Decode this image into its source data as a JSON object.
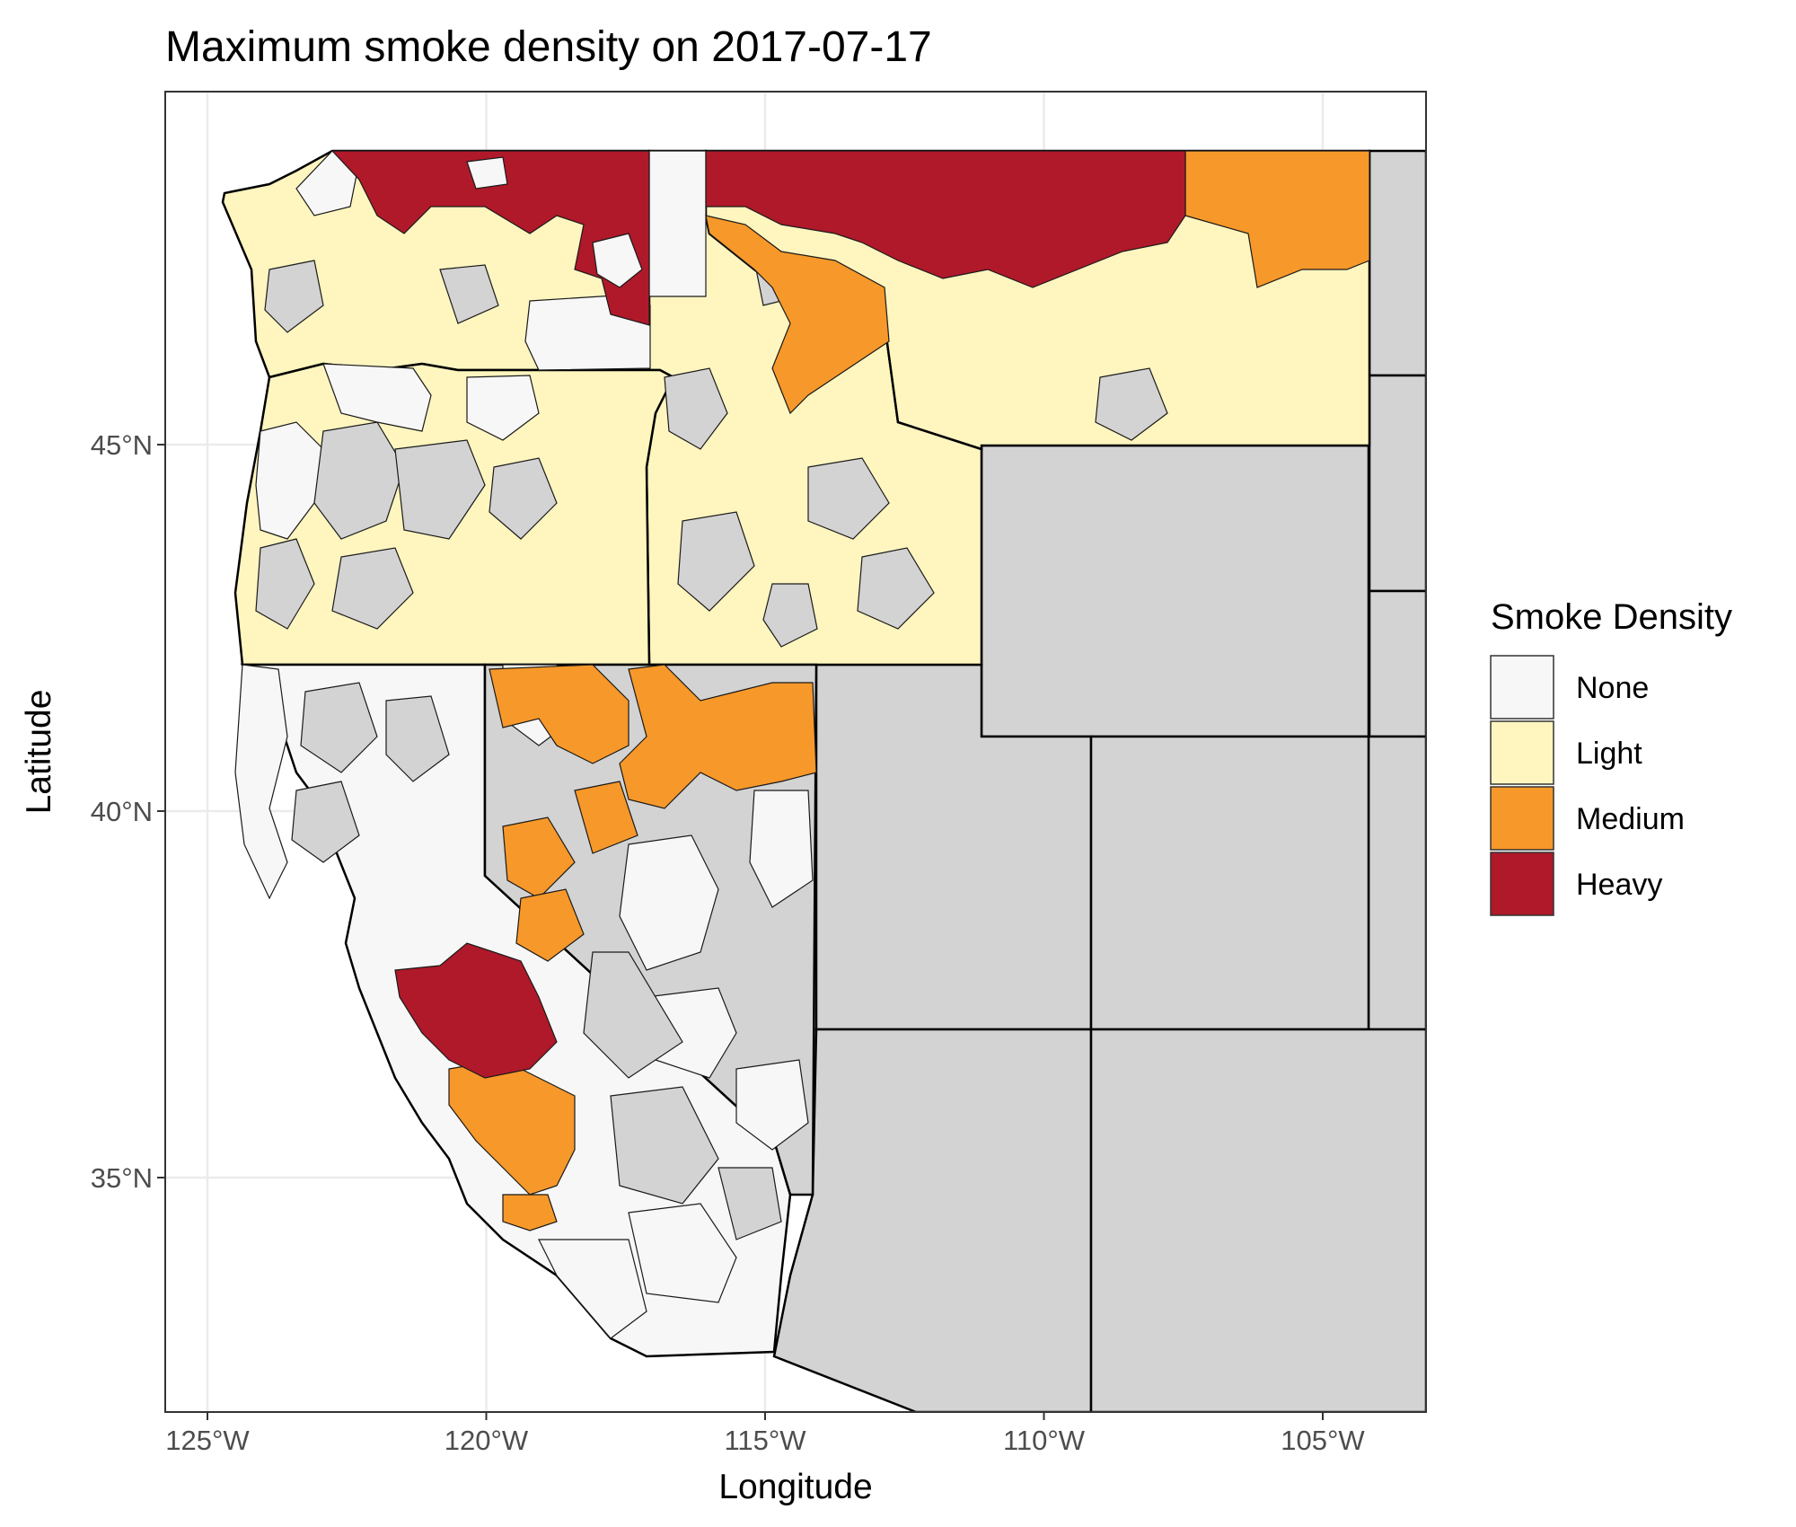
{
  "title": "Maximum smoke density on 2017-07-17",
  "x_axis": {
    "label": "Longitude",
    "ticks": [
      {
        "value": -125,
        "label": "125°W"
      },
      {
        "value": -120,
        "label": "120°W"
      },
      {
        "value": -115,
        "label": "115°W"
      },
      {
        "value": -110,
        "label": "110°W"
      },
      {
        "value": -105,
        "label": "105°W"
      }
    ]
  },
  "y_axis": {
    "label": "Latitude",
    "ticks": [
      {
        "value": 35,
        "label": "35°N"
      },
      {
        "value": 40,
        "label": "40°N"
      },
      {
        "value": 45,
        "label": "45°N"
      }
    ]
  },
  "legend": {
    "title": "Smoke Density",
    "items": [
      {
        "label": "None",
        "color": "#f7f7f7"
      },
      {
        "label": "Light",
        "color": "#fef5bf"
      },
      {
        "label": "Medium",
        "color": "#f7982a"
      },
      {
        "label": "Heavy",
        "color": "#b0192a"
      }
    ]
  },
  "colors": {
    "no_data": "#d3d3d3",
    "panel_border": "#333333",
    "grid": "#ebebeb",
    "boundary": "#000000"
  }
}
